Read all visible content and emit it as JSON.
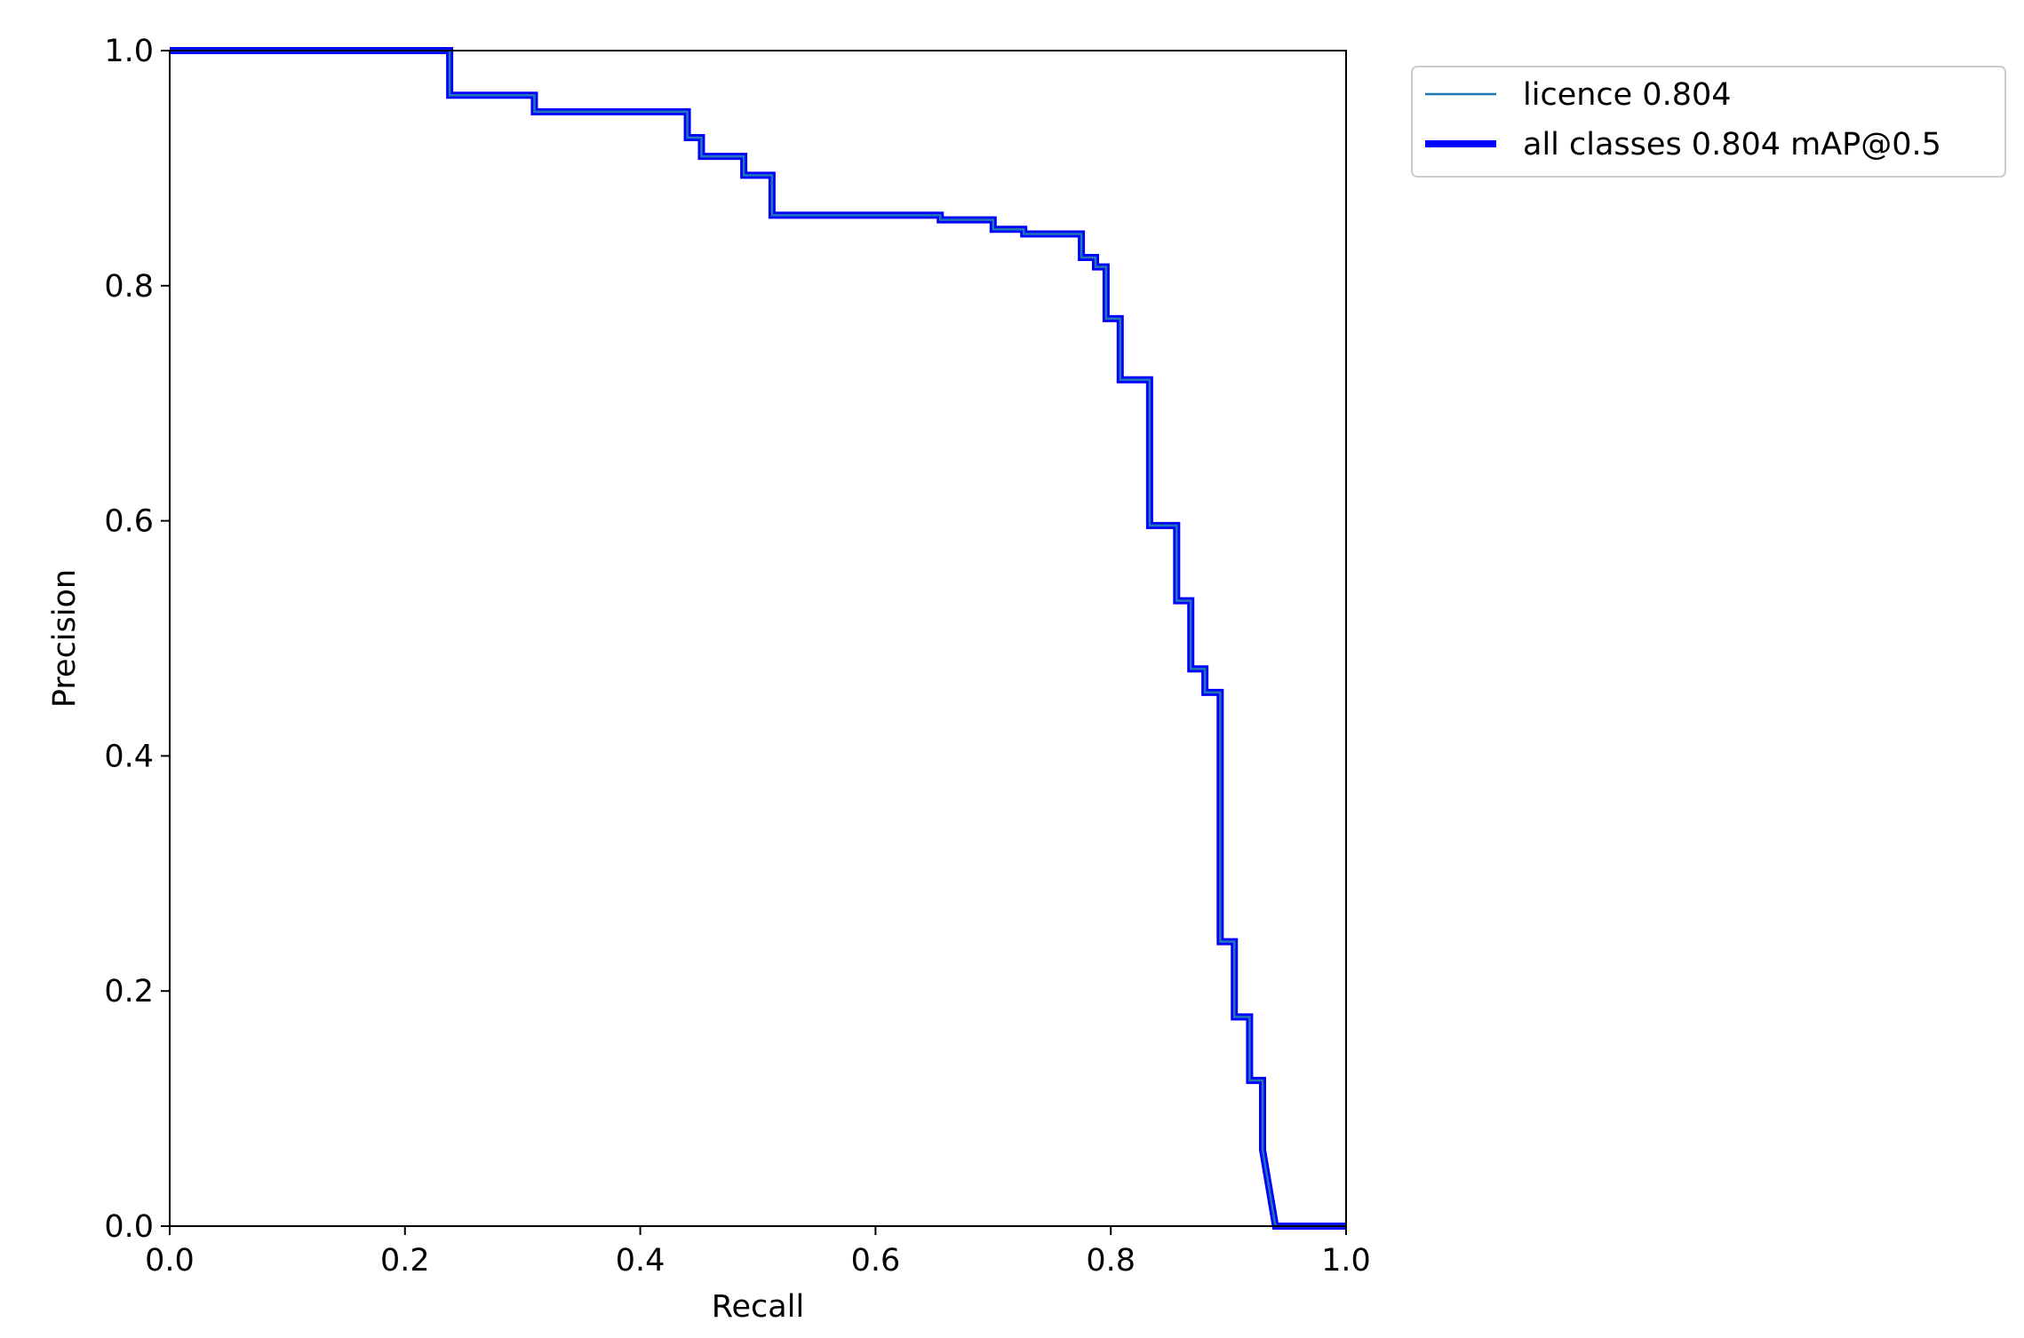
{
  "chart_data": {
    "type": "line",
    "title": "",
    "xlabel": "Recall",
    "ylabel": "Precision",
    "xlim": [
      0.0,
      1.0
    ],
    "ylim": [
      0.0,
      1.0
    ],
    "grid": false,
    "xticks": [
      "0.0",
      "0.2",
      "0.4",
      "0.6",
      "0.8",
      "1.0"
    ],
    "yticks": [
      "0.0",
      "0.2",
      "0.4",
      "0.6",
      "0.8",
      "1.0"
    ],
    "legend_position": "outside-top-right",
    "series": [
      {
        "name": "licence 0.804",
        "color": "#1f77b4",
        "linewidth": "thin",
        "x": [
          0.0,
          0.238,
          0.238,
          0.31,
          0.31,
          0.44,
          0.44,
          0.452,
          0.452,
          0.488,
          0.488,
          0.512,
          0.512,
          0.655,
          0.655,
          0.7,
          0.7,
          0.726,
          0.726,
          0.775,
          0.775,
          0.787,
          0.787,
          0.796,
          0.796,
          0.808,
          0.808,
          0.833,
          0.833,
          0.856,
          0.856,
          0.868,
          0.868,
          0.88,
          0.88,
          0.893,
          0.893,
          0.905,
          0.905,
          0.918,
          0.918,
          0.929,
          0.929,
          0.94,
          1.0
        ],
        "y": [
          1.0,
          1.0,
          0.962,
          0.962,
          0.948,
          0.948,
          0.926,
          0.926,
          0.91,
          0.91,
          0.894,
          0.894,
          0.86,
          0.86,
          0.856,
          0.856,
          0.848,
          0.848,
          0.844,
          0.844,
          0.824,
          0.824,
          0.816,
          0.816,
          0.772,
          0.772,
          0.72,
          0.72,
          0.596,
          0.596,
          0.532,
          0.532,
          0.474,
          0.474,
          0.454,
          0.454,
          0.242,
          0.242,
          0.178,
          0.178,
          0.124,
          0.124,
          0.065,
          0.0,
          0.0
        ]
      },
      {
        "name": "all classes 0.804 mAP@0.5",
        "color": "#0000ff",
        "linewidth": "thick",
        "x": [
          0.0,
          0.238,
          0.238,
          0.31,
          0.31,
          0.44,
          0.44,
          0.452,
          0.452,
          0.488,
          0.488,
          0.512,
          0.512,
          0.655,
          0.655,
          0.7,
          0.7,
          0.726,
          0.726,
          0.775,
          0.775,
          0.787,
          0.787,
          0.796,
          0.796,
          0.808,
          0.808,
          0.833,
          0.833,
          0.856,
          0.856,
          0.868,
          0.868,
          0.88,
          0.88,
          0.893,
          0.893,
          0.905,
          0.905,
          0.918,
          0.918,
          0.929,
          0.929,
          0.94,
          1.0
        ],
        "y": [
          1.0,
          1.0,
          0.962,
          0.962,
          0.948,
          0.948,
          0.926,
          0.926,
          0.91,
          0.91,
          0.894,
          0.894,
          0.86,
          0.86,
          0.856,
          0.856,
          0.848,
          0.848,
          0.844,
          0.844,
          0.824,
          0.824,
          0.816,
          0.816,
          0.772,
          0.772,
          0.72,
          0.72,
          0.596,
          0.596,
          0.532,
          0.532,
          0.474,
          0.474,
          0.454,
          0.454,
          0.242,
          0.242,
          0.178,
          0.178,
          0.124,
          0.124,
          0.065,
          0.0,
          0.0
        ]
      }
    ]
  }
}
